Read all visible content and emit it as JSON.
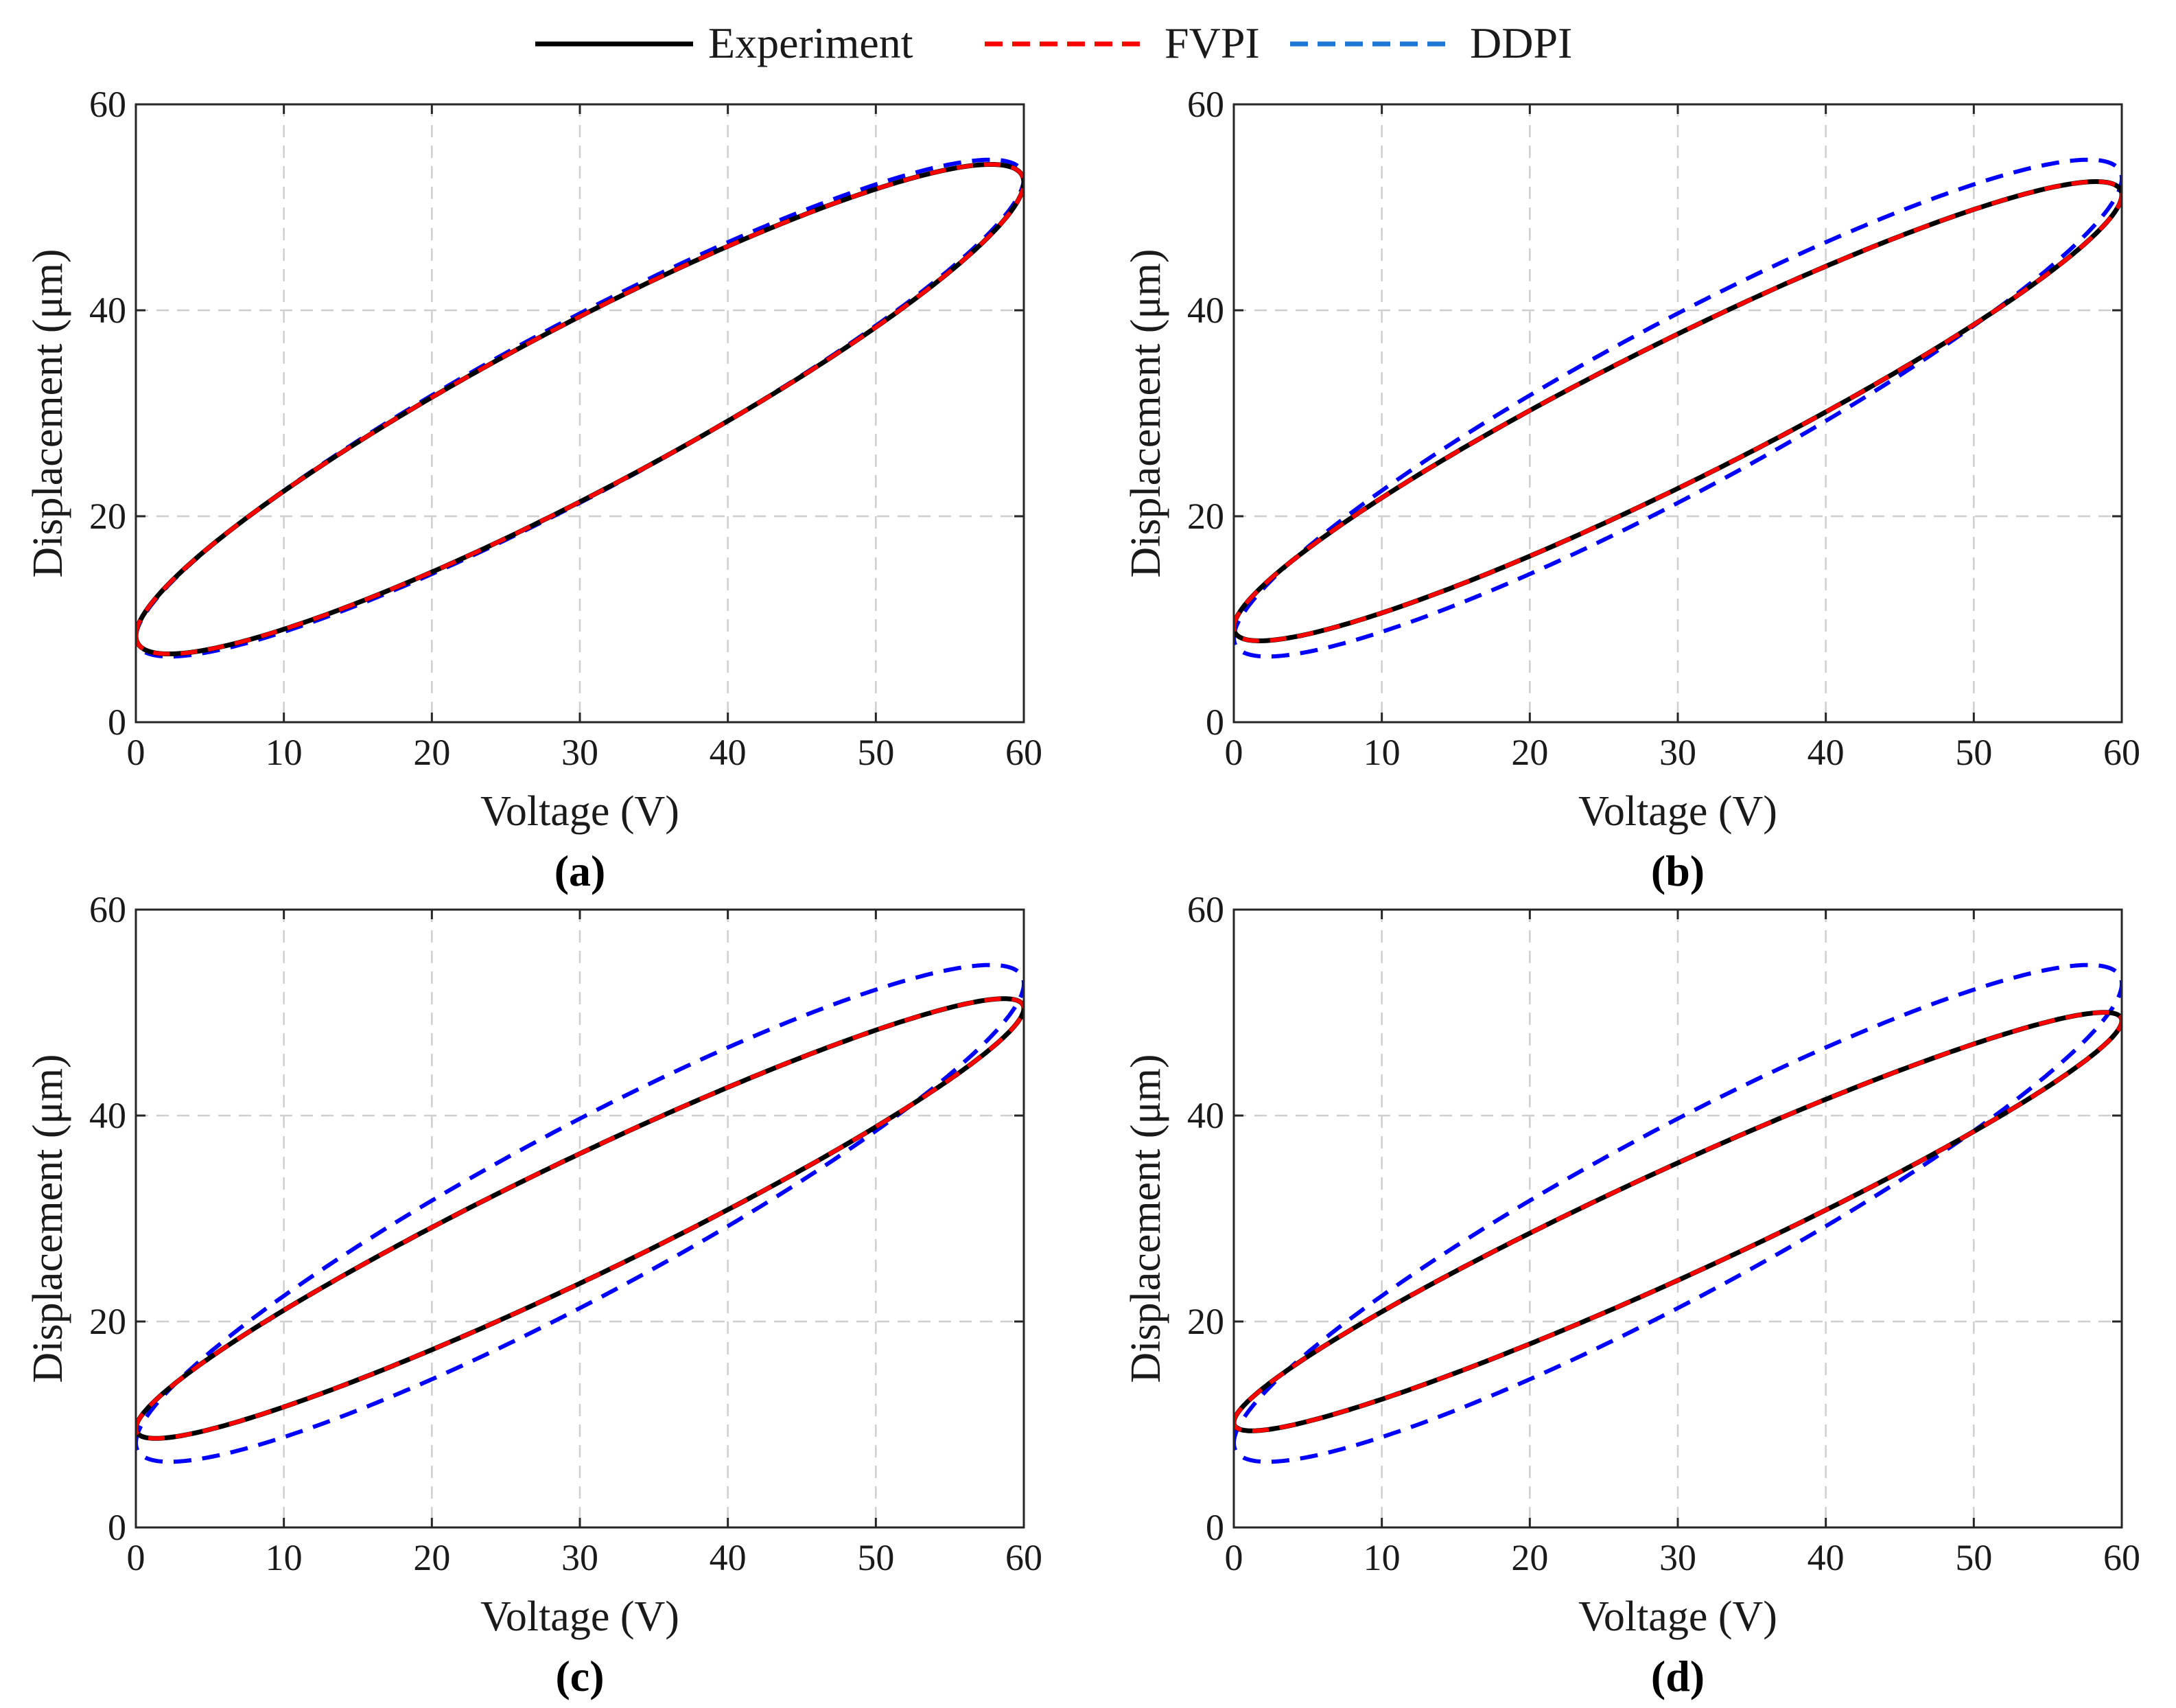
{
  "legend": {
    "entries": [
      {
        "label": "Experiment",
        "color": "#000000",
        "style": "solid"
      },
      {
        "label": "FVPI",
        "color": "#ff0000",
        "style": "dashed"
      },
      {
        "label": "DDPI",
        "color": "#0000ff",
        "style": "dashed",
        "swatch_color": "#1f77d4"
      }
    ]
  },
  "chart_data": [
    {
      "type": "line",
      "panel": "(a)",
      "xlabel": "Voltage (V)",
      "ylabel": "Displacement (μm)",
      "xlim": [
        0,
        60
      ],
      "ylim": [
        0,
        60
      ],
      "xticks": [
        0,
        10,
        20,
        30,
        40,
        50,
        60
      ],
      "yticks": [
        0,
        20,
        40,
        60
      ],
      "grid": true,
      "series": [
        {
          "name": "Experiment",
          "color": "#000000",
          "style": "solid",
          "loop": {
            "a0": 30,
            "a1": 30,
            "b0": 30.4,
            "b1": 22.0,
            "c1": 9.0
          }
        },
        {
          "name": "FVPI",
          "color": "#ff0000",
          "style": "dashed",
          "loop": {
            "a0": 30,
            "a1": 30,
            "b0": 30.4,
            "b1": 22.0,
            "c1": 9.0
          }
        },
        {
          "name": "DDPI",
          "color": "#0000ff",
          "style": "dashed",
          "loop": {
            "a0": 30,
            "a1": 30,
            "b0": 30.5,
            "b1": 22.3,
            "c1": 9.2
          }
        }
      ]
    },
    {
      "type": "line",
      "panel": "(b)",
      "xlabel": "Voltage (V)",
      "ylabel": "Displacement (μm)",
      "xlim": [
        0,
        60
      ],
      "ylim": [
        0,
        60
      ],
      "xticks": [
        0,
        10,
        20,
        30,
        40,
        50,
        60
      ],
      "yticks": [
        0,
        20,
        40,
        60
      ],
      "grid": true,
      "series": [
        {
          "name": "Experiment",
          "color": "#000000",
          "style": "solid",
          "loop": {
            "a0": 30,
            "a1": 30,
            "b0": 30.2,
            "b1": 21.0,
            "c1": 7.5
          }
        },
        {
          "name": "FVPI",
          "color": "#ff0000",
          "style": "dashed",
          "loop": {
            "a0": 30,
            "a1": 30,
            "b0": 30.2,
            "b1": 21.0,
            "c1": 7.5
          }
        },
        {
          "name": "DDPI",
          "color": "#0000ff",
          "style": "dashed",
          "loop": {
            "a0": 30,
            "a1": 30,
            "b0": 30.5,
            "b1": 22.3,
            "c1": 9.2
          }
        }
      ]
    },
    {
      "type": "line",
      "panel": "(c)",
      "xlabel": "Voltage (V)",
      "ylabel": "Displacement (μm)",
      "xlim": [
        0,
        60
      ],
      "ylim": [
        0,
        60
      ],
      "xticks": [
        0,
        10,
        20,
        30,
        40,
        50,
        60
      ],
      "yticks": [
        0,
        20,
        40,
        60
      ],
      "grid": true,
      "series": [
        {
          "name": "Experiment",
          "color": "#000000",
          "style": "solid",
          "loop": {
            "a0": 30,
            "a1": 30,
            "b0": 30.0,
            "b1": 20.4,
            "c1": 6.3
          }
        },
        {
          "name": "FVPI",
          "color": "#ff0000",
          "style": "dashed",
          "loop": {
            "a0": 30,
            "a1": 30,
            "b0": 30.0,
            "b1": 20.4,
            "c1": 6.3
          }
        },
        {
          "name": "DDPI",
          "color": "#0000ff",
          "style": "dashed",
          "loop": {
            "a0": 30,
            "a1": 30,
            "b0": 30.5,
            "b1": 22.3,
            "c1": 9.2
          }
        }
      ]
    },
    {
      "type": "line",
      "panel": "(d)",
      "xlabel": "Voltage (V)",
      "ylabel": "Displacement (μm)",
      "xlim": [
        0,
        60
      ],
      "ylim": [
        0,
        60
      ],
      "xticks": [
        0,
        10,
        20,
        30,
        40,
        50,
        60
      ],
      "yticks": [
        0,
        20,
        40,
        60
      ],
      "grid": true,
      "series": [
        {
          "name": "Experiment",
          "color": "#000000",
          "style": "solid",
          "loop": {
            "a0": 30,
            "a1": 30,
            "b0": 29.7,
            "b1": 19.5,
            "c1": 5.7
          }
        },
        {
          "name": "FVPI",
          "color": "#ff0000",
          "style": "dashed",
          "loop": {
            "a0": 30,
            "a1": 30,
            "b0": 29.7,
            "b1": 19.5,
            "c1": 5.7
          }
        },
        {
          "name": "DDPI",
          "color": "#0000ff",
          "style": "dashed",
          "loop": {
            "a0": 30,
            "a1": 30,
            "b0": 30.5,
            "b1": 22.3,
            "c1": 9.2
          }
        }
      ]
    }
  ]
}
